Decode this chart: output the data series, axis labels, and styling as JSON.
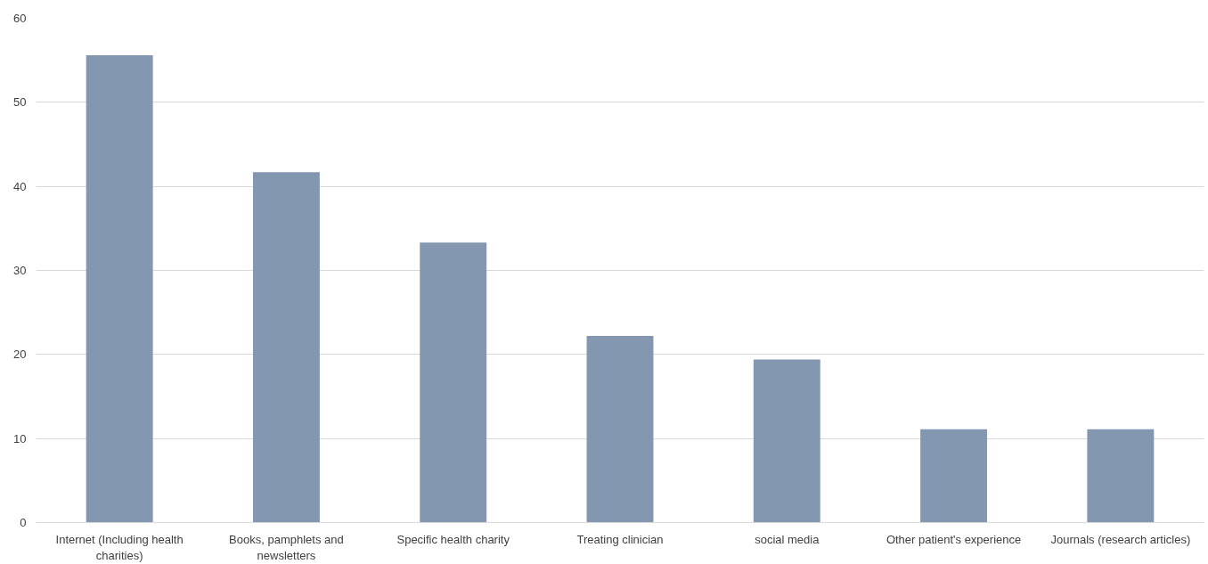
{
  "chart_data": {
    "type": "bar",
    "categories": [
      "Internet (Including health charities)",
      "Books, pamphlets and newsletters",
      "Specific health charity",
      "Treating clinician",
      "social media",
      "Other patient's experience",
      "Journals (research articles)"
    ],
    "values": [
      55.6,
      41.7,
      33.3,
      22.2,
      19.4,
      11.1,
      11.1
    ],
    "color": "#8497b0",
    "ylim": [
      0,
      60
    ],
    "yticks": [
      0,
      10,
      20,
      30,
      40,
      50,
      60
    ],
    "grid": "y"
  }
}
